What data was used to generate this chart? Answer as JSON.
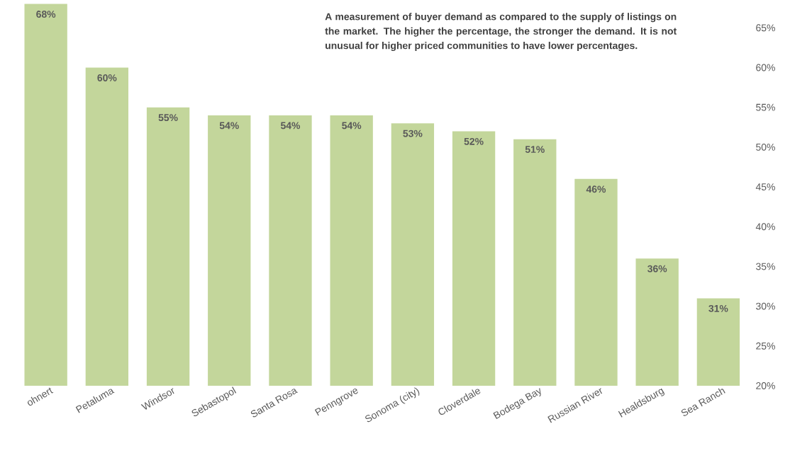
{
  "chart_data": {
    "type": "bar",
    "categories": [
      "ohnert",
      "Petaluma",
      "Windsor",
      "Sebastopol",
      "Santa Rosa",
      "Penngrove",
      "Sonoma (city)",
      "Cloverdale",
      "Bodega Bay",
      "Russian River",
      "Healdsburg",
      "Sea Ranch"
    ],
    "values": [
      68,
      60,
      55,
      54,
      54,
      54,
      53,
      52,
      51,
      46,
      36,
      31
    ],
    "value_labels": [
      "68%",
      "60%",
      "55%",
      "54%",
      "54%",
      "54%",
      "53%",
      "52%",
      "51%",
      "46%",
      "36%",
      "31%"
    ],
    "color": "#c3d69b",
    "ylim": [
      20,
      68.5
    ],
    "yticks": [
      {
        "value": 20,
        "label": "20%"
      },
      {
        "value": 25,
        "label": "25%"
      },
      {
        "value": 30,
        "label": "30%"
      },
      {
        "value": 35,
        "label": "35%"
      },
      {
        "value": 40,
        "label": "40%"
      },
      {
        "value": 45,
        "label": "45%"
      },
      {
        "value": 50,
        "label": "50%"
      },
      {
        "value": 55,
        "label": "55%"
      },
      {
        "value": 60,
        "label": "60%"
      },
      {
        "value": 65,
        "label": "65%"
      }
    ],
    "grid": false,
    "annotations": [
      "A measurement of buyer demand as compared to the supply of listings on the market. The higher the percentage, the stronger the demand. It is not unusual for higher priced communities to have lower percentages."
    ]
  }
}
